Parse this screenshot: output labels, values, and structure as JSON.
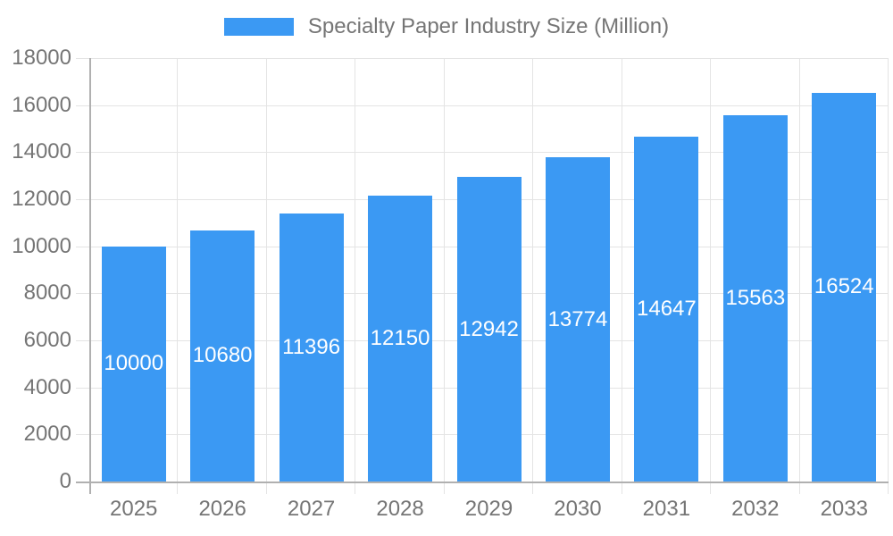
{
  "legend": {
    "label": "Specialty Paper Industry Size (Million)"
  },
  "colors": {
    "bar": "#3b99f3",
    "grid": "#e4e4e4",
    "axis": "#b0b0b0",
    "text": "#757575",
    "value_text": "#ffffff",
    "background": "#ffffff"
  },
  "chart_data": {
    "type": "bar",
    "title": "Specialty Paper Industry Size (Million)",
    "series_name": "Specialty Paper Industry Size (Million)",
    "categories": [
      "2025",
      "2026",
      "2027",
      "2028",
      "2029",
      "2030",
      "2031",
      "2032",
      "2033"
    ],
    "values": [
      10000,
      10680,
      11396,
      12150,
      12942,
      13774,
      14647,
      15563,
      16524
    ],
    "bar_labels": [
      10000,
      10680,
      11396,
      12150,
      12942,
      13774,
      14647,
      15563,
      16524
    ],
    "xlabel": "",
    "ylabel": "",
    "ylim": [
      0,
      18000
    ],
    "ytick_step": 2000,
    "yticks": [
      0,
      2000,
      4000,
      6000,
      8000,
      10000,
      12000,
      14000,
      16000,
      18000
    ],
    "grid": true,
    "legend_position": "top"
  }
}
